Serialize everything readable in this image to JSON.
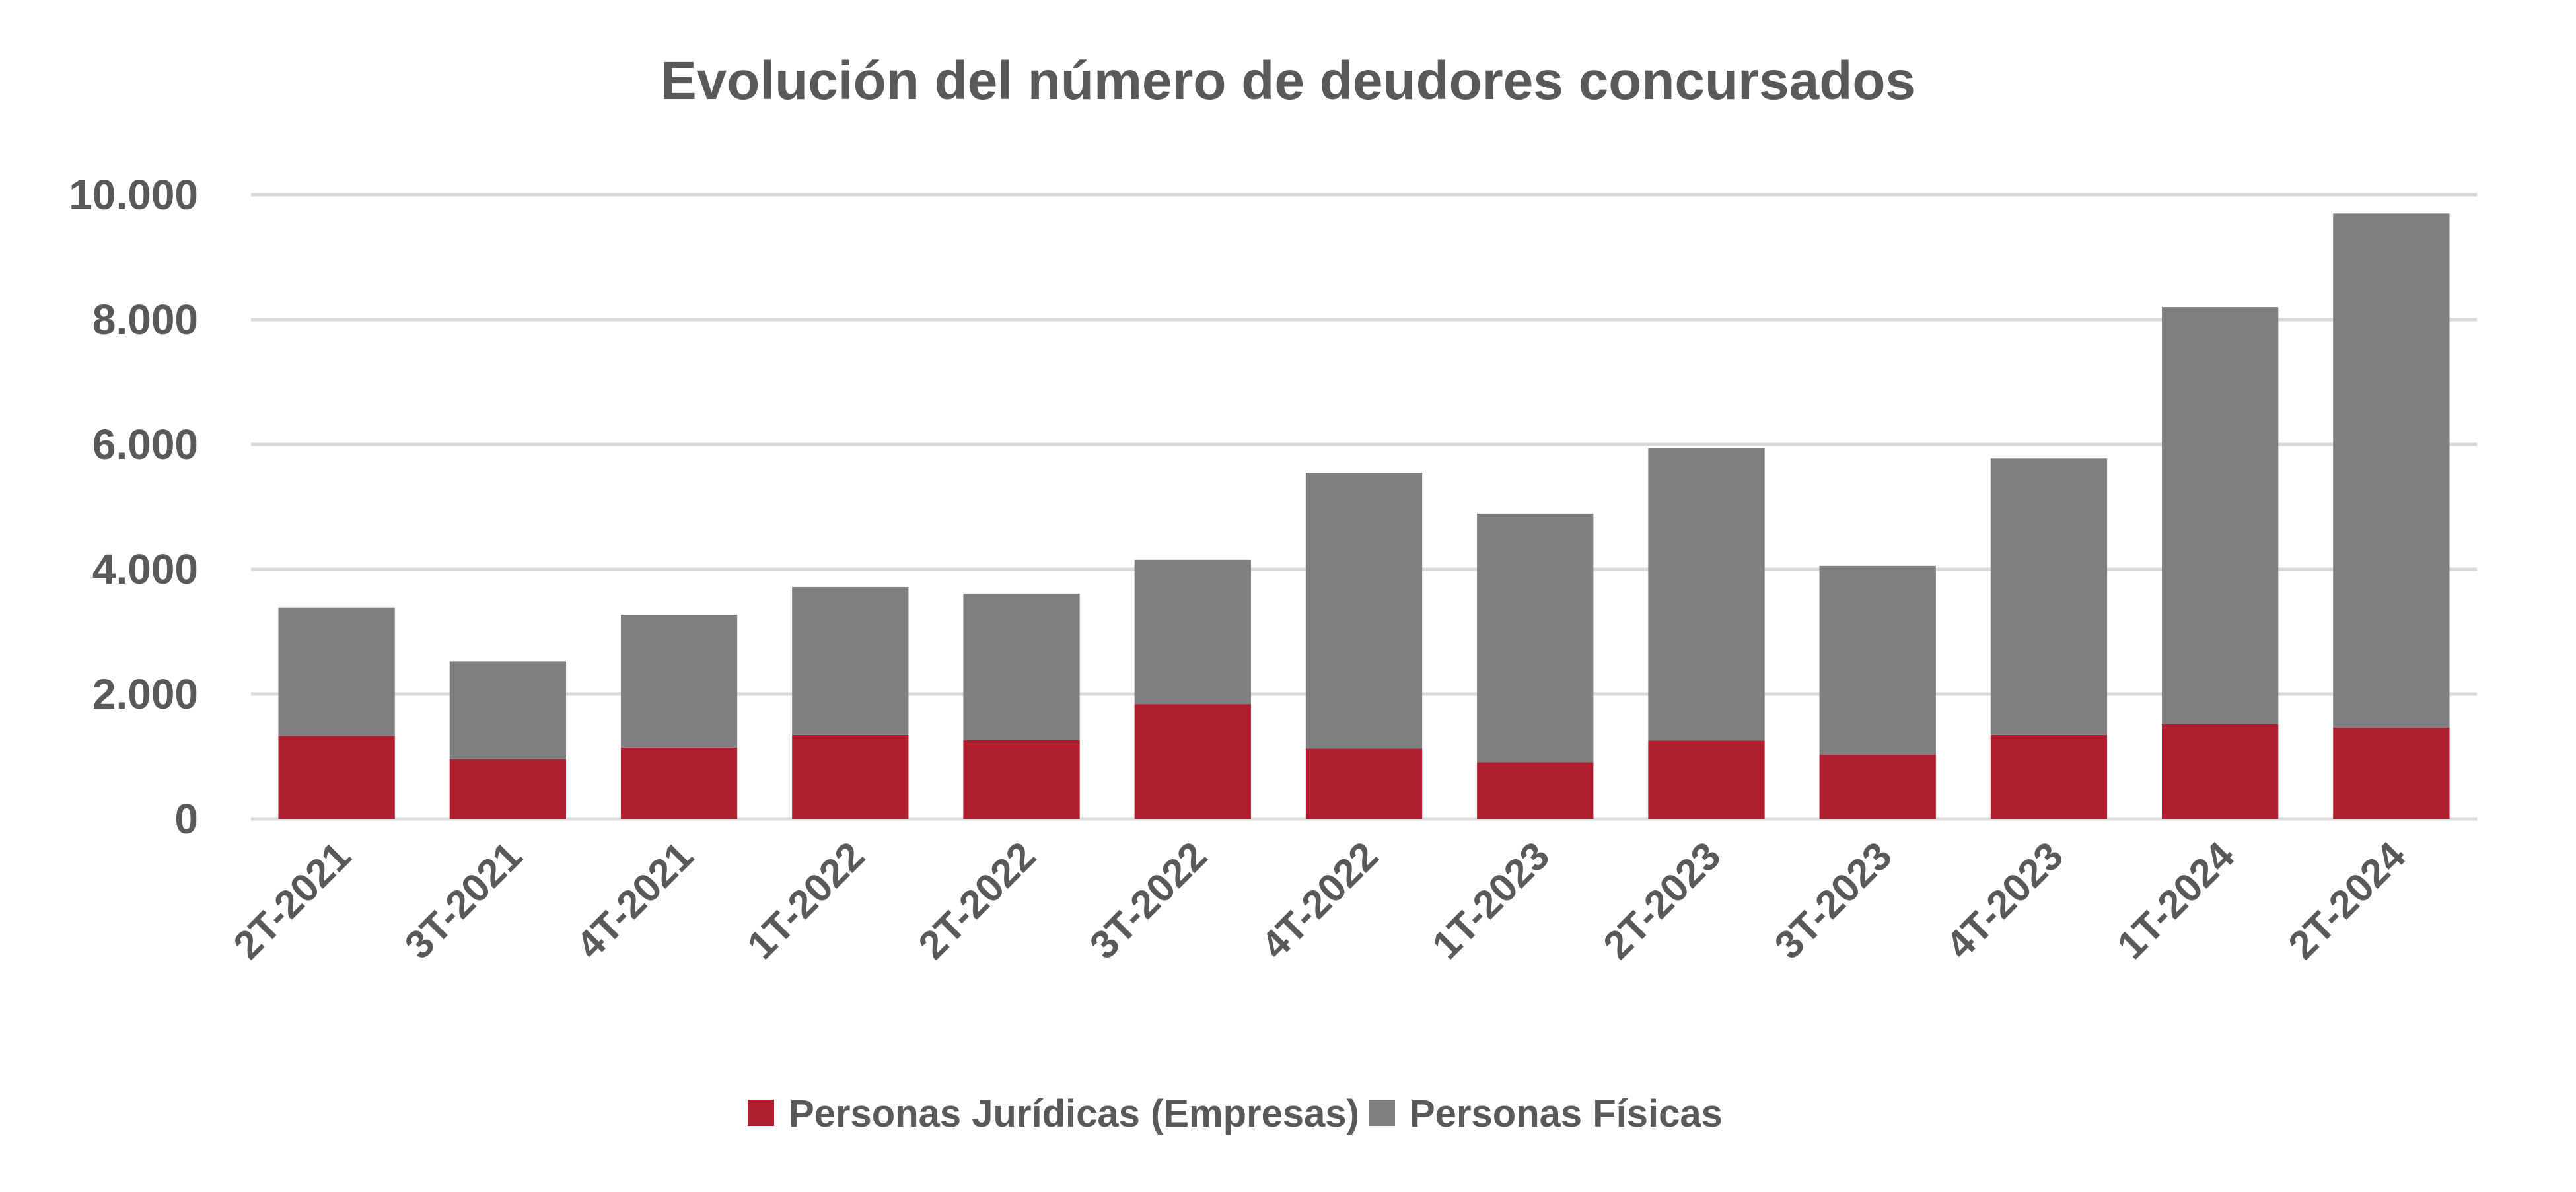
{
  "chart_data": {
    "type": "bar",
    "stacked": true,
    "title": "Evolución del número de deudores concursados",
    "xlabel": "",
    "ylabel": "",
    "ylim": [
      0,
      10000
    ],
    "yticks": [
      0,
      2000,
      4000,
      6000,
      8000,
      10000
    ],
    "ytick_labels": [
      "0",
      "2.000",
      "4.000",
      "6.000",
      "8.000",
      "10.000"
    ],
    "grid": true,
    "legend_position": "bottom",
    "categories": [
      "2T-2021",
      "3T-2021",
      "4T-2021",
      "1T-2022",
      "2T-2022",
      "3T-2022",
      "4T-2022",
      "1T-2023",
      "2T-2023",
      "3T-2023",
      "4T-2023",
      "1T-2024",
      "2T-2024"
    ],
    "series": [
      {
        "name": "Personas Jurídicas (Empresas)",
        "color": "#AE1E2E",
        "values": [
          1330,
          955,
          1145,
          1345,
          1260,
          1840,
          1130,
          905,
          1255,
          1030,
          1345,
          1515,
          1460
        ]
      },
      {
        "name": "Personas Físicas",
        "color": "#7F7F7F",
        "values": [
          2060,
          1570,
          2125,
          2370,
          2350,
          2310,
          4415,
          3985,
          4685,
          3025,
          4430,
          6685,
          8240
        ]
      }
    ]
  }
}
